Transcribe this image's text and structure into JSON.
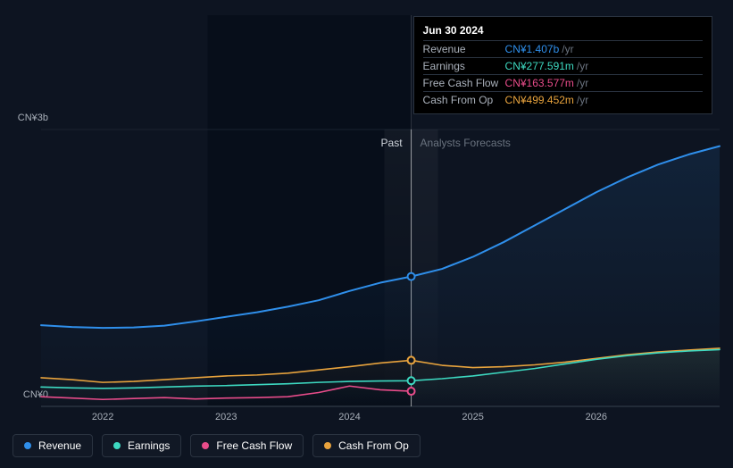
{
  "chart": {
    "background_color": "#0d1421",
    "grid_color": "#1a2230",
    "text_color": "#aab1bb",
    "y_axis": {
      "labels": [
        "CN¥3b",
        "CN¥0"
      ],
      "min": 0,
      "max": 3000
    },
    "x_axis": {
      "labels": [
        "2022",
        "2023",
        "2024",
        "2025",
        "2026"
      ],
      "min": 2021.5,
      "max": 2027.0
    },
    "sections": {
      "past_label": "Past",
      "forecast_label": "Analysts Forecasts",
      "split_x": 2024.5
    },
    "cursor_x": 2024.5,
    "series": [
      {
        "id": "revenue",
        "label": "Revenue",
        "color": "#2f8feb",
        "stroke_width": 2,
        "fill_opacity": 0.12,
        "points": [
          [
            2021.5,
            880
          ],
          [
            2021.75,
            860
          ],
          [
            2022.0,
            850
          ],
          [
            2022.25,
            855
          ],
          [
            2022.5,
            875
          ],
          [
            2022.75,
            920
          ],
          [
            2023.0,
            970
          ],
          [
            2023.25,
            1020
          ],
          [
            2023.5,
            1080
          ],
          [
            2023.75,
            1150
          ],
          [
            2024.0,
            1250
          ],
          [
            2024.25,
            1340
          ],
          [
            2024.5,
            1407
          ],
          [
            2024.75,
            1490
          ],
          [
            2025.0,
            1620
          ],
          [
            2025.25,
            1780
          ],
          [
            2025.5,
            1960
          ],
          [
            2025.75,
            2140
          ],
          [
            2026.0,
            2320
          ],
          [
            2026.25,
            2480
          ],
          [
            2026.5,
            2620
          ],
          [
            2026.75,
            2730
          ],
          [
            2027.0,
            2820
          ]
        ]
      },
      {
        "id": "cash_from_op",
        "label": "Cash From Op",
        "color": "#e8a33d",
        "stroke_width": 1.6,
        "fill_opacity": 0.06,
        "points": [
          [
            2021.5,
            310
          ],
          [
            2021.75,
            290
          ],
          [
            2022.0,
            260
          ],
          [
            2022.25,
            270
          ],
          [
            2022.5,
            290
          ],
          [
            2022.75,
            310
          ],
          [
            2023.0,
            330
          ],
          [
            2023.25,
            340
          ],
          [
            2023.5,
            360
          ],
          [
            2023.75,
            395
          ],
          [
            2024.0,
            430
          ],
          [
            2024.25,
            470
          ],
          [
            2024.5,
            499
          ],
          [
            2024.75,
            445
          ],
          [
            2025.0,
            420
          ],
          [
            2025.25,
            430
          ],
          [
            2025.5,
            450
          ],
          [
            2025.75,
            480
          ],
          [
            2026.0,
            520
          ],
          [
            2026.25,
            560
          ],
          [
            2026.5,
            590
          ],
          [
            2026.75,
            610
          ],
          [
            2027.0,
            630
          ]
        ]
      },
      {
        "id": "earnings",
        "label": "Earnings",
        "color": "#3dd9c1",
        "stroke_width": 1.6,
        "fill_opacity": 0.06,
        "points": [
          [
            2021.5,
            210
          ],
          [
            2021.75,
            200
          ],
          [
            2022.0,
            195
          ],
          [
            2022.25,
            200
          ],
          [
            2022.5,
            210
          ],
          [
            2022.75,
            220
          ],
          [
            2023.0,
            225
          ],
          [
            2023.25,
            235
          ],
          [
            2023.5,
            245
          ],
          [
            2023.75,
            260
          ],
          [
            2024.0,
            270
          ],
          [
            2024.25,
            275
          ],
          [
            2024.5,
            278
          ],
          [
            2024.75,
            300
          ],
          [
            2025.0,
            330
          ],
          [
            2025.25,
            370
          ],
          [
            2025.5,
            410
          ],
          [
            2025.75,
            460
          ],
          [
            2026.0,
            510
          ],
          [
            2026.25,
            550
          ],
          [
            2026.5,
            580
          ],
          [
            2026.75,
            600
          ],
          [
            2027.0,
            615
          ]
        ]
      },
      {
        "id": "fcf",
        "label": "Free Cash Flow",
        "color": "#e84c8a",
        "stroke_width": 1.6,
        "fill_opacity": 0,
        "points": [
          [
            2021.5,
            105
          ],
          [
            2021.75,
            90
          ],
          [
            2022.0,
            75
          ],
          [
            2022.25,
            85
          ],
          [
            2022.5,
            95
          ],
          [
            2022.75,
            80
          ],
          [
            2023.0,
            90
          ],
          [
            2023.25,
            95
          ],
          [
            2023.5,
            105
          ],
          [
            2023.75,
            150
          ],
          [
            2024.0,
            220
          ],
          [
            2024.25,
            180
          ],
          [
            2024.5,
            164
          ]
        ]
      }
    ],
    "markers": [
      {
        "series": "revenue",
        "x": 2024.5,
        "y": 1407,
        "color": "#2f8feb"
      },
      {
        "series": "cash_from_op",
        "x": 2024.5,
        "y": 499,
        "color": "#e8a33d"
      },
      {
        "series": "earnings",
        "x": 2024.5,
        "y": 278,
        "color": "#3dd9c1"
      },
      {
        "series": "fcf",
        "x": 2024.5,
        "y": 164,
        "color": "#e84c8a"
      }
    ]
  },
  "tooltip": {
    "title": "Jun 30 2024",
    "unit": "/yr",
    "rows": [
      {
        "key": "Revenue",
        "value": "CN¥1.407b",
        "color": "#2f8feb"
      },
      {
        "key": "Earnings",
        "value": "CN¥277.591m",
        "color": "#3dd9c1"
      },
      {
        "key": "Free Cash Flow",
        "value": "CN¥163.577m",
        "color": "#e84c8a"
      },
      {
        "key": "Cash From Op",
        "value": "CN¥499.452m",
        "color": "#e8a33d"
      }
    ]
  },
  "legend": {
    "items": [
      {
        "id": "revenue",
        "label": "Revenue",
        "color": "#2f8feb"
      },
      {
        "id": "earnings",
        "label": "Earnings",
        "color": "#3dd9c1"
      },
      {
        "id": "fcf",
        "label": "Free Cash Flow",
        "color": "#e84c8a"
      },
      {
        "id": "cash_from_op",
        "label": "Cash From Op",
        "color": "#e8a33d"
      }
    ]
  }
}
